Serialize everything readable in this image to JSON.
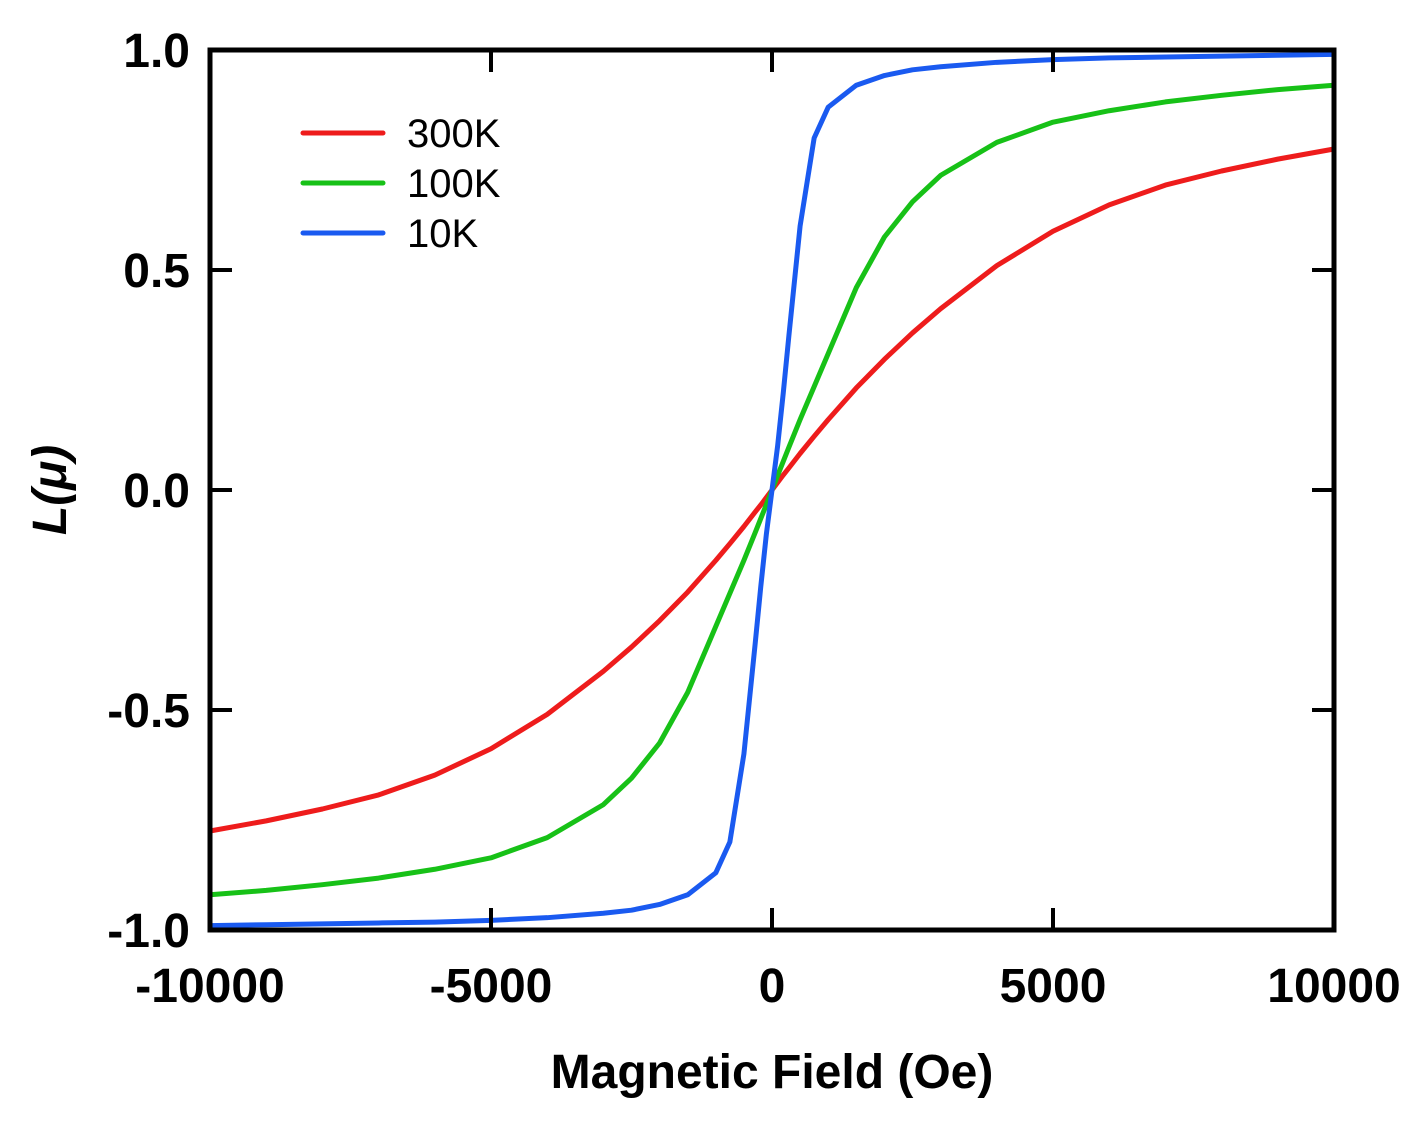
{
  "chart_data": {
    "type": "line",
    "title": "",
    "xlabel": "Magnetic Field (Oe)",
    "ylabel": "L(μ)",
    "xlim": [
      -10000,
      10000
    ],
    "ylim": [
      -1.0,
      1.0
    ],
    "x_ticks": [
      -10000,
      -5000,
      0,
      5000,
      10000
    ],
    "x_tick_labels": [
      "-10000",
      "-5000",
      "0",
      "5000",
      "10000"
    ],
    "y_ticks": [
      -1.0,
      -0.5,
      0.0,
      0.5,
      1.0
    ],
    "y_tick_labels": [
      "-1.0",
      "-0.5",
      "0.0",
      "0.5",
      "1.0"
    ],
    "grid": false,
    "legend_position": "top-left",
    "x": [
      -10000,
      -9000,
      -8000,
      -7000,
      -6000,
      -5000,
      -4000,
      -3000,
      -2500,
      -2000,
      -1500,
      -1000,
      -750,
      -500,
      -300,
      -200,
      -100,
      0,
      100,
      200,
      300,
      500,
      750,
      1000,
      1500,
      2000,
      2500,
      3000,
      4000,
      5000,
      6000,
      7000,
      8000,
      9000,
      10000
    ],
    "series": [
      {
        "name": "300K",
        "color": "#ee1c1c",
        "values": [
          -0.775,
          -0.752,
          -0.725,
          -0.693,
          -0.648,
          -0.588,
          -0.51,
          -0.412,
          -0.357,
          -0.297,
          -0.232,
          -0.16,
          -0.122,
          -0.083,
          -0.05,
          -0.034,
          -0.017,
          0.0,
          0.017,
          0.034,
          0.05,
          0.083,
          0.122,
          0.16,
          0.232,
          0.297,
          0.357,
          0.412,
          0.51,
          0.588,
          0.648,
          0.693,
          0.725,
          0.752,
          0.775
        ]
      },
      {
        "name": "100K",
        "color": "#17c117",
        "values": [
          -0.92,
          -0.91,
          -0.897,
          -0.882,
          -0.862,
          -0.836,
          -0.79,
          -0.715,
          -0.655,
          -0.575,
          -0.46,
          -0.31,
          -0.235,
          -0.16,
          -0.097,
          -0.065,
          -0.033,
          0.0,
          0.033,
          0.065,
          0.097,
          0.16,
          0.235,
          0.31,
          0.46,
          0.575,
          0.655,
          0.715,
          0.79,
          0.836,
          0.862,
          0.882,
          0.897,
          0.91,
          0.92
        ]
      },
      {
        "name": "10K",
        "color": "#1a5af0",
        "values": [
          -0.99,
          -0.988,
          -0.986,
          -0.984,
          -0.982,
          -0.978,
          -0.972,
          -0.962,
          -0.955,
          -0.942,
          -0.92,
          -0.87,
          -0.8,
          -0.6,
          -0.35,
          -0.22,
          -0.1,
          0.0,
          0.1,
          0.22,
          0.35,
          0.6,
          0.8,
          0.87,
          0.92,
          0.942,
          0.955,
          0.962,
          0.972,
          0.978,
          0.982,
          0.984,
          0.986,
          0.988,
          0.99
        ]
      }
    ]
  }
}
